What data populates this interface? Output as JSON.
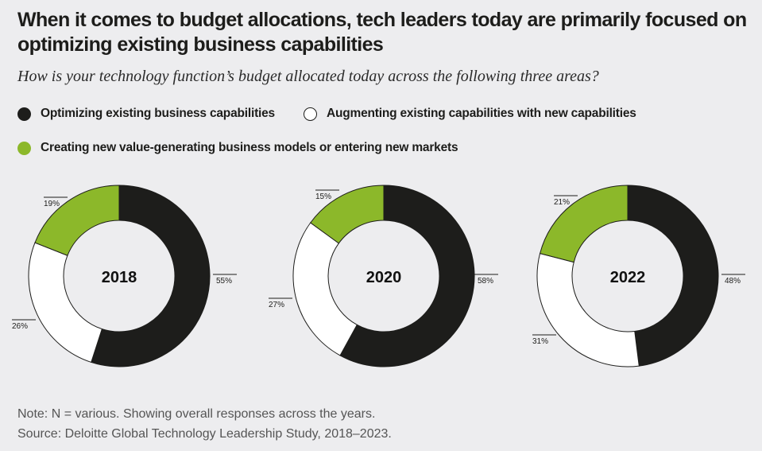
{
  "title": "When it comes to budget allocations, tech leaders today are primarily focused on optimizing existing business capabilities",
  "subtitle": "How is your technology function’s budget allocated today across the following three areas?",
  "legend": [
    {
      "label": "Optimizing existing business capabilities",
      "color": "#1d1d1b"
    },
    {
      "label": "Augmenting existing capabilities with new capabilities",
      "color": "#ffffff"
    },
    {
      "label": "Creating new value-generating business models or entering new markets",
      "color": "#8cb82a"
    }
  ],
  "chart_data": [
    {
      "type": "pie",
      "variant": "donut",
      "center_label": "2018",
      "categories": [
        "Optimizing existing business capabilities",
        "Augmenting existing capabilities with new capabilities",
        "Creating new value-generating business models or entering new markets"
      ],
      "values": [
        55,
        26,
        19
      ],
      "labels": [
        "55%",
        "26%",
        "19%"
      ]
    },
    {
      "type": "pie",
      "variant": "donut",
      "center_label": "2020",
      "categories": [
        "Optimizing existing business capabilities",
        "Augmenting existing capabilities with new capabilities",
        "Creating new value-generating business models or entering new markets"
      ],
      "values": [
        58,
        27,
        15
      ],
      "labels": [
        "58%",
        "27%",
        "15%"
      ]
    },
    {
      "type": "pie",
      "variant": "donut",
      "center_label": "2022",
      "categories": [
        "Optimizing existing business capabilities",
        "Augmenting existing capabilities with new capabilities",
        "Creating new value-generating business models or entering new markets"
      ],
      "values": [
        48,
        31,
        21
      ],
      "labels": [
        "48%",
        "31%",
        "21%"
      ]
    }
  ],
  "note": "Note: N = various. Showing overall responses across the years.",
  "source": "Source: Deloitte Global Technology Leadership Study, 2018–2023."
}
